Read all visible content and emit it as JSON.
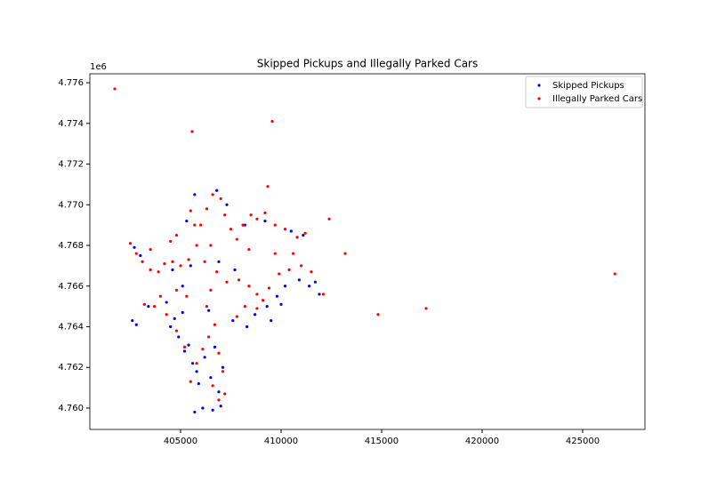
{
  "chart_data": {
    "type": "scatter",
    "title": "Skipped Pickups and Illegally Parked Cars",
    "y_offset_label": "1e6",
    "xlim": [
      400487,
      428097
    ],
    "ylim": [
      4.75895,
      4.77644
    ],
    "xticks": [
      405000,
      410000,
      415000,
      420000,
      425000
    ],
    "yticks": [
      {
        "value": 4.76,
        "label": "4.760"
      },
      {
        "value": 4.762,
        "label": "4.762"
      },
      {
        "value": 4.764,
        "label": "4.764"
      },
      {
        "value": 4.766,
        "label": "4.766"
      },
      {
        "value": 4.768,
        "label": "4.768"
      },
      {
        "value": 4.77,
        "label": "4.770"
      },
      {
        "value": 4.772,
        "label": "4.772"
      },
      {
        "value": 4.774,
        "label": "4.774"
      },
      {
        "value": 4.776,
        "label": "4.776"
      }
    ],
    "legend": "upper right",
    "series": [
      {
        "name": "Skipped Pickups",
        "color": "blue",
        "x": [
          402600,
          402800,
          403400,
          404500,
          404900,
          405200,
          405600,
          405900,
          406100,
          405700,
          406600,
          407000,
          406900,
          406500,
          407100,
          406200,
          405400,
          404700,
          404300,
          405100,
          405500,
          405300,
          405700,
          406800,
          407300,
          408200,
          409200,
          410500,
          411100,
          410900,
          411400,
          411900,
          411700,
          410200,
          409800,
          409300,
          408700,
          408300,
          407600,
          406400,
          407700,
          406900,
          403000,
          402700,
          404600,
          409500,
          410000,
          405800,
          406700,
          405100
        ],
        "values": [
          4.7643,
          4.7641,
          4.765,
          4.764,
          4.7635,
          4.7628,
          4.7622,
          4.7612,
          4.76,
          4.7598,
          4.7599,
          4.7601,
          4.7608,
          4.7615,
          4.762,
          4.7625,
          4.7631,
          4.7644,
          4.7652,
          4.766,
          4.767,
          4.7692,
          4.7705,
          4.7707,
          4.77,
          4.769,
          4.7692,
          4.7687,
          4.7685,
          4.7663,
          4.766,
          4.7656,
          4.7662,
          4.766,
          4.7655,
          4.765,
          4.7646,
          4.764,
          4.7643,
          4.7648,
          4.7668,
          4.7672,
          4.7675,
          4.7679,
          4.7668,
          4.7643,
          4.7651,
          4.7618,
          4.763,
          4.7647
        ]
      },
      {
        "name": "Illegally Parked Cars",
        "color": "red",
        "x": [
          401726,
          405576,
          409558,
          409337,
          426600,
          414824,
          417214,
          413187,
          412391,
          402500,
          402800,
          403100,
          403500,
          403900,
          404200,
          404600,
          405000,
          405400,
          405800,
          406000,
          406300,
          406600,
          407000,
          407200,
          407500,
          407800,
          408100,
          408500,
          408800,
          409200,
          409700,
          410200,
          410800,
          411200,
          406500,
          406200,
          406800,
          407300,
          407900,
          408400,
          408800,
          409100,
          409400,
          409900,
          410400,
          411000,
          411500,
          408800,
          406500,
          406300,
          406700,
          406400,
          406100,
          406900,
          407100,
          406600,
          405500,
          405800,
          405200,
          404800,
          404300,
          403700,
          403200,
          404000,
          404800,
          405300,
          407800,
          408200,
          406900,
          407200,
          405700,
          405500,
          404800,
          403500,
          404500,
          408400,
          409700,
          410600,
          412100
        ],
        "values": [
          4.7757,
          4.7736,
          4.7741,
          4.7709,
          4.7666,
          4.7646,
          4.7649,
          4.7676,
          4.7693,
          4.7681,
          4.7676,
          4.7672,
          4.7668,
          4.7667,
          4.7671,
          4.7672,
          4.767,
          4.7673,
          4.768,
          4.769,
          4.7698,
          4.7705,
          4.7703,
          4.7695,
          4.7688,
          4.7683,
          4.769,
          4.7695,
          4.7693,
          4.7696,
          4.769,
          4.7688,
          4.7684,
          4.7686,
          4.768,
          4.7672,
          4.7667,
          4.7662,
          4.7663,
          4.766,
          4.7656,
          4.7653,
          4.7659,
          4.7666,
          4.7668,
          4.767,
          4.7667,
          4.7649,
          4.7658,
          4.765,
          4.7641,
          4.7635,
          4.7629,
          4.7627,
          4.7618,
          4.7611,
          4.7613,
          4.7622,
          4.763,
          4.7638,
          4.7646,
          4.765,
          4.7651,
          4.7655,
          4.7658,
          4.7655,
          4.7645,
          4.765,
          4.7604,
          4.7607,
          4.769,
          4.7697,
          4.7685,
          4.7678,
          4.7682,
          4.7678,
          4.7676,
          4.7676,
          4.7656
        ]
      }
    ]
  }
}
